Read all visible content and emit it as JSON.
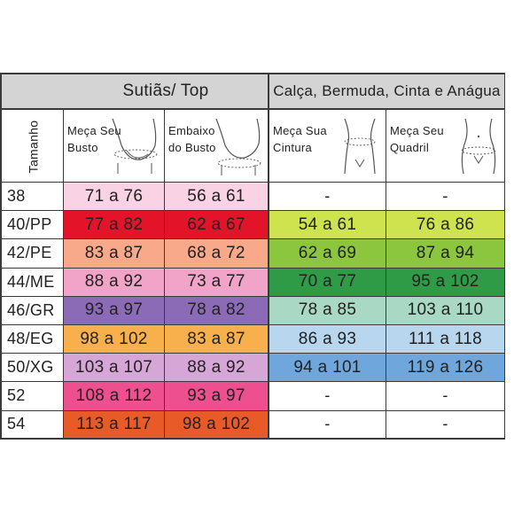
{
  "headers": {
    "top_group": "Sutiãs/ Top",
    "bottom_group": "Calça, Bermuda, Cinta e Anágua",
    "size_col": "Tamanho",
    "bust": [
      "Meça Seu",
      "Busto"
    ],
    "underbust": [
      "Embaixo",
      "do Busto"
    ],
    "waist": [
      "Meça Sua",
      "Cintura"
    ],
    "hip": [
      "Meça Seu",
      "Quadril"
    ]
  },
  "rows": [
    {
      "size": "38",
      "bust": "71 a 76",
      "underbust": "56 a 61",
      "waist": "-",
      "hip": "-"
    },
    {
      "size": "40/PP",
      "bust": "77 a 82",
      "underbust": "62 a 67",
      "waist": "54 a 61",
      "hip": "76 a 86"
    },
    {
      "size": "42/PE",
      "bust": "83 a 87",
      "underbust": "68 a 72",
      "waist": "62 a 69",
      "hip": "87 a 94"
    },
    {
      "size": "44/ME",
      "bust": "88 a 92",
      "underbust": "73 a 77",
      "waist": "70 a 77",
      "hip": "95 a 102"
    },
    {
      "size": "46/GR",
      "bust": "93 a 97",
      "underbust": "78 a 82",
      "waist": "78 a 85",
      "hip": "103 a 110"
    },
    {
      "size": "48/EG",
      "bust": "98 a 102",
      "underbust": "83 a 87",
      "waist": "86 a 93",
      "hip": "111 a 118"
    },
    {
      "size": "50/XG",
      "bust": "103 a 107",
      "underbust": "88 a 92",
      "waist": "94 a 101",
      "hip": "119 a 126"
    },
    {
      "size": "52",
      "bust": "108 a 112",
      "underbust": "93 a 97",
      "waist": "-",
      "hip": "-"
    },
    {
      "size": "54",
      "bust": "113 a 117",
      "underbust": "98 a 102",
      "waist": "-",
      "hip": "-"
    }
  ],
  "colors": {
    "top": [
      "#f9d2e3",
      "#e3132a",
      "#f7a98a",
      "#f2a3c8",
      "#8b6bb5",
      "#f7b04b",
      "#d5a6d6",
      "#ee4f8f",
      "#e85b28"
    ],
    "bottom": [
      "#ffffff",
      "#cfe34f",
      "#8cc63f",
      "#2f9b46",
      "#a9d8c4",
      "#b8d7ef",
      "#6fa6dc",
      "#ffffff",
      "#ffffff"
    ],
    "header": "#d4d4d4"
  }
}
